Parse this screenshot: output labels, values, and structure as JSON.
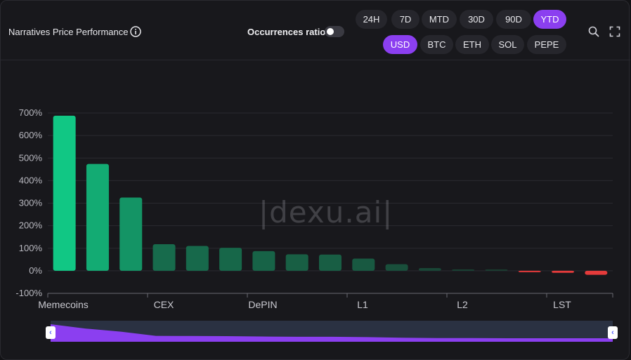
{
  "header": {
    "title": "Narratives Price Performance",
    "occurrences_label": "Occurrences ratio",
    "occurrences_on": false,
    "time_ranges": [
      "24H",
      "7D",
      "MTD",
      "30D",
      "90D",
      "YTD"
    ],
    "time_selected": "YTD",
    "currencies": [
      "USD",
      "BTC",
      "ETH",
      "SOL",
      "PEPE"
    ],
    "currency_selected": "USD",
    "icons": [
      "info-icon",
      "search-icon",
      "fullscreen-icon"
    ]
  },
  "watermark": "|dexu.ai|",
  "chart_data": {
    "type": "bar",
    "x_tick_labels": [
      "Memecoins",
      "CEX",
      "DePIN",
      "L1",
      "L2",
      "LST"
    ],
    "values": [
      688,
      474,
      325,
      118,
      110,
      102,
      87,
      73,
      72,
      54,
      29,
      12,
      6,
      1,
      -3,
      -9,
      -18
    ],
    "ylim": [
      -100,
      700
    ],
    "yticks": [
      "700%",
      "600%",
      "500%",
      "400%",
      "300%",
      "200%",
      "100%",
      "0%",
      "-100%"
    ],
    "grid": true,
    "colors": {
      "positive_strong": "#11c784",
      "positive_dim": "#1a3a2e",
      "negative": "#e53b3b"
    }
  }
}
